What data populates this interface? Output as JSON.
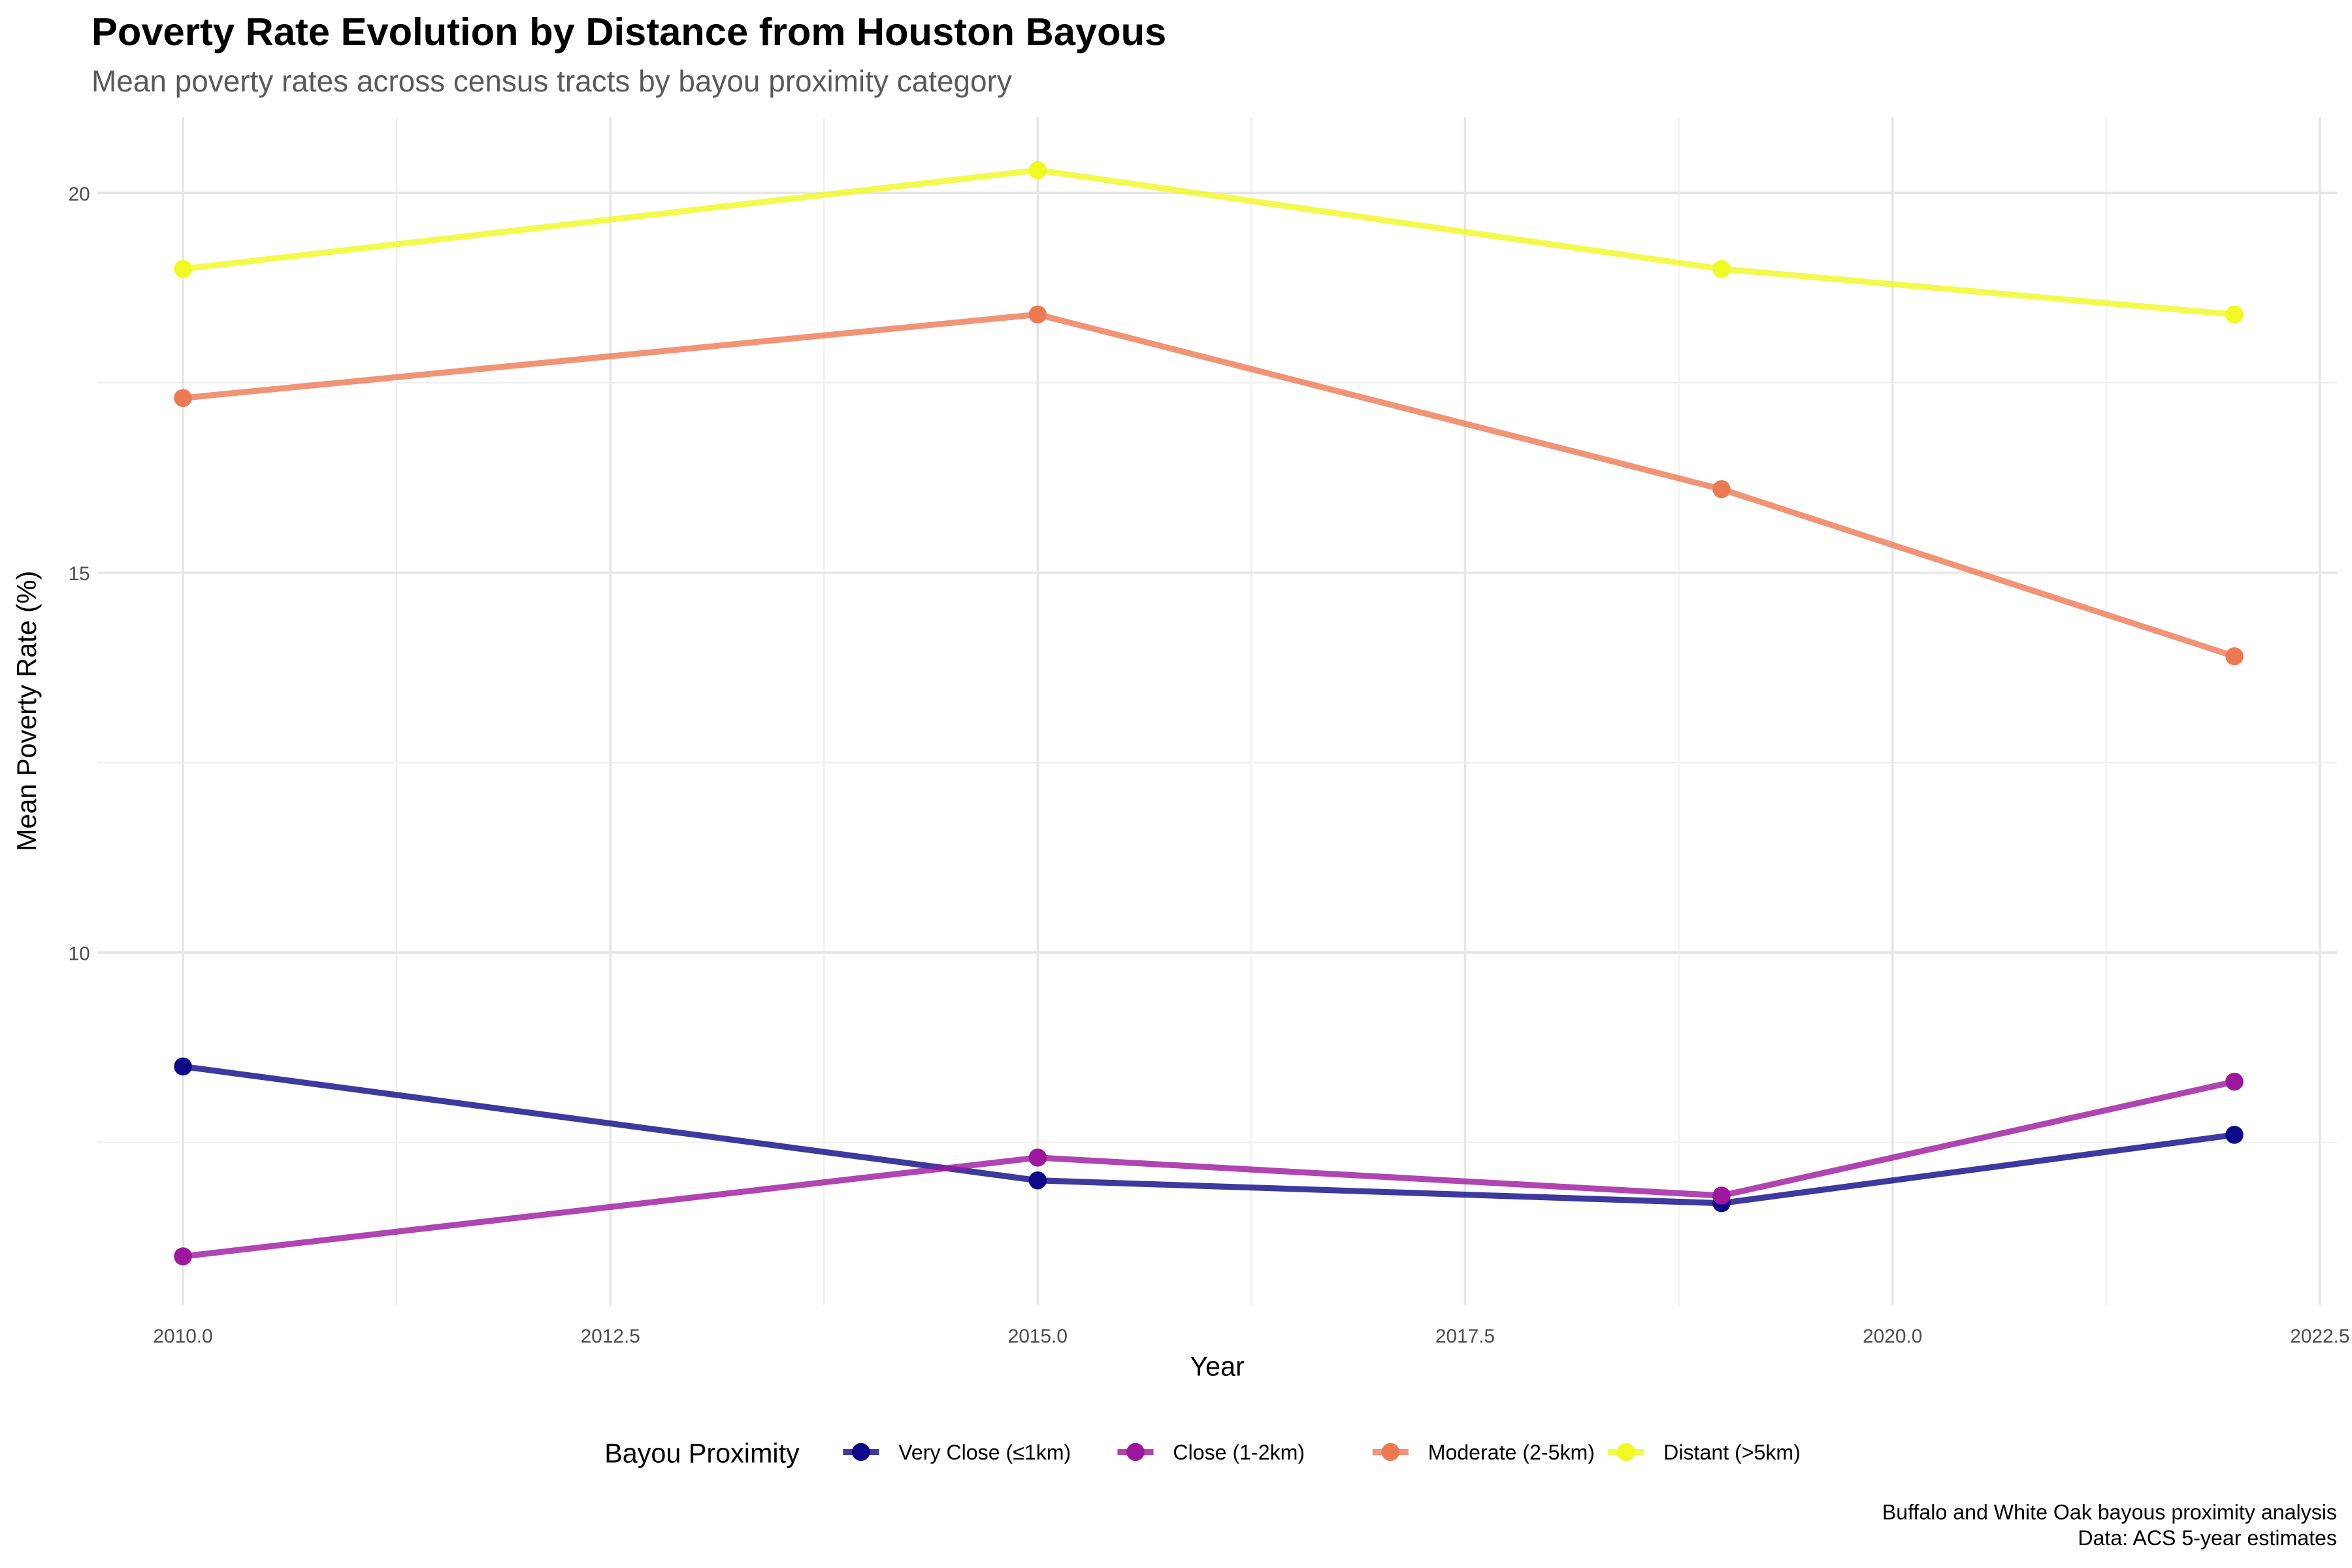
{
  "title": "Poverty Rate Evolution by Distance from Houston Bayous",
  "subtitle": "Mean poverty rates across census tracts by bayou proximity category",
  "caption_line1": "Buffalo and White Oak bayous proximity analysis",
  "caption_line2": "Data: ACS 5-year estimates",
  "chart_data": {
    "type": "line",
    "title": "Poverty Rate Evolution by Distance from Houston Bayous",
    "subtitle": "Mean poverty rates across census tracts by bayou proximity category",
    "xlabel": "Year",
    "ylabel": "Mean Poverty Rate (%)",
    "x": [
      2010,
      2015,
      2019,
      2022
    ],
    "xlim": [
      2009.5,
      2022.6
    ],
    "ylim": [
      5.36,
      21.0
    ],
    "xticks": [
      "2010.0",
      "2012.5",
      "2015.0",
      "2017.5",
      "2020.0",
      "2022.5"
    ],
    "xtick_values": [
      2010,
      2012.5,
      2015,
      2017.5,
      2020,
      2022.5
    ],
    "yticks": [
      "10",
      "15",
      "20"
    ],
    "ytick_values": [
      10,
      15,
      20
    ],
    "grid": true,
    "legend_title": "Bayou Proximity",
    "legend_position": "bottom",
    "series": [
      {
        "name": "Very Close (≤1km)",
        "color": "#0d0887",
        "values": [
          8.5,
          7.0,
          6.7,
          7.6
        ]
      },
      {
        "name": "Close (1-2km)",
        "color": "#9c179e",
        "values": [
          6.0,
          7.3,
          6.8,
          8.3
        ]
      },
      {
        "name": "Moderate (2-5km)",
        "color": "#ed7953",
        "values": [
          17.3,
          18.4,
          16.1,
          13.9
        ]
      },
      {
        "name": "Distant (>5km)",
        "color": "#f0f921",
        "values": [
          19.0,
          20.3,
          19.0,
          18.4
        ]
      }
    ]
  }
}
